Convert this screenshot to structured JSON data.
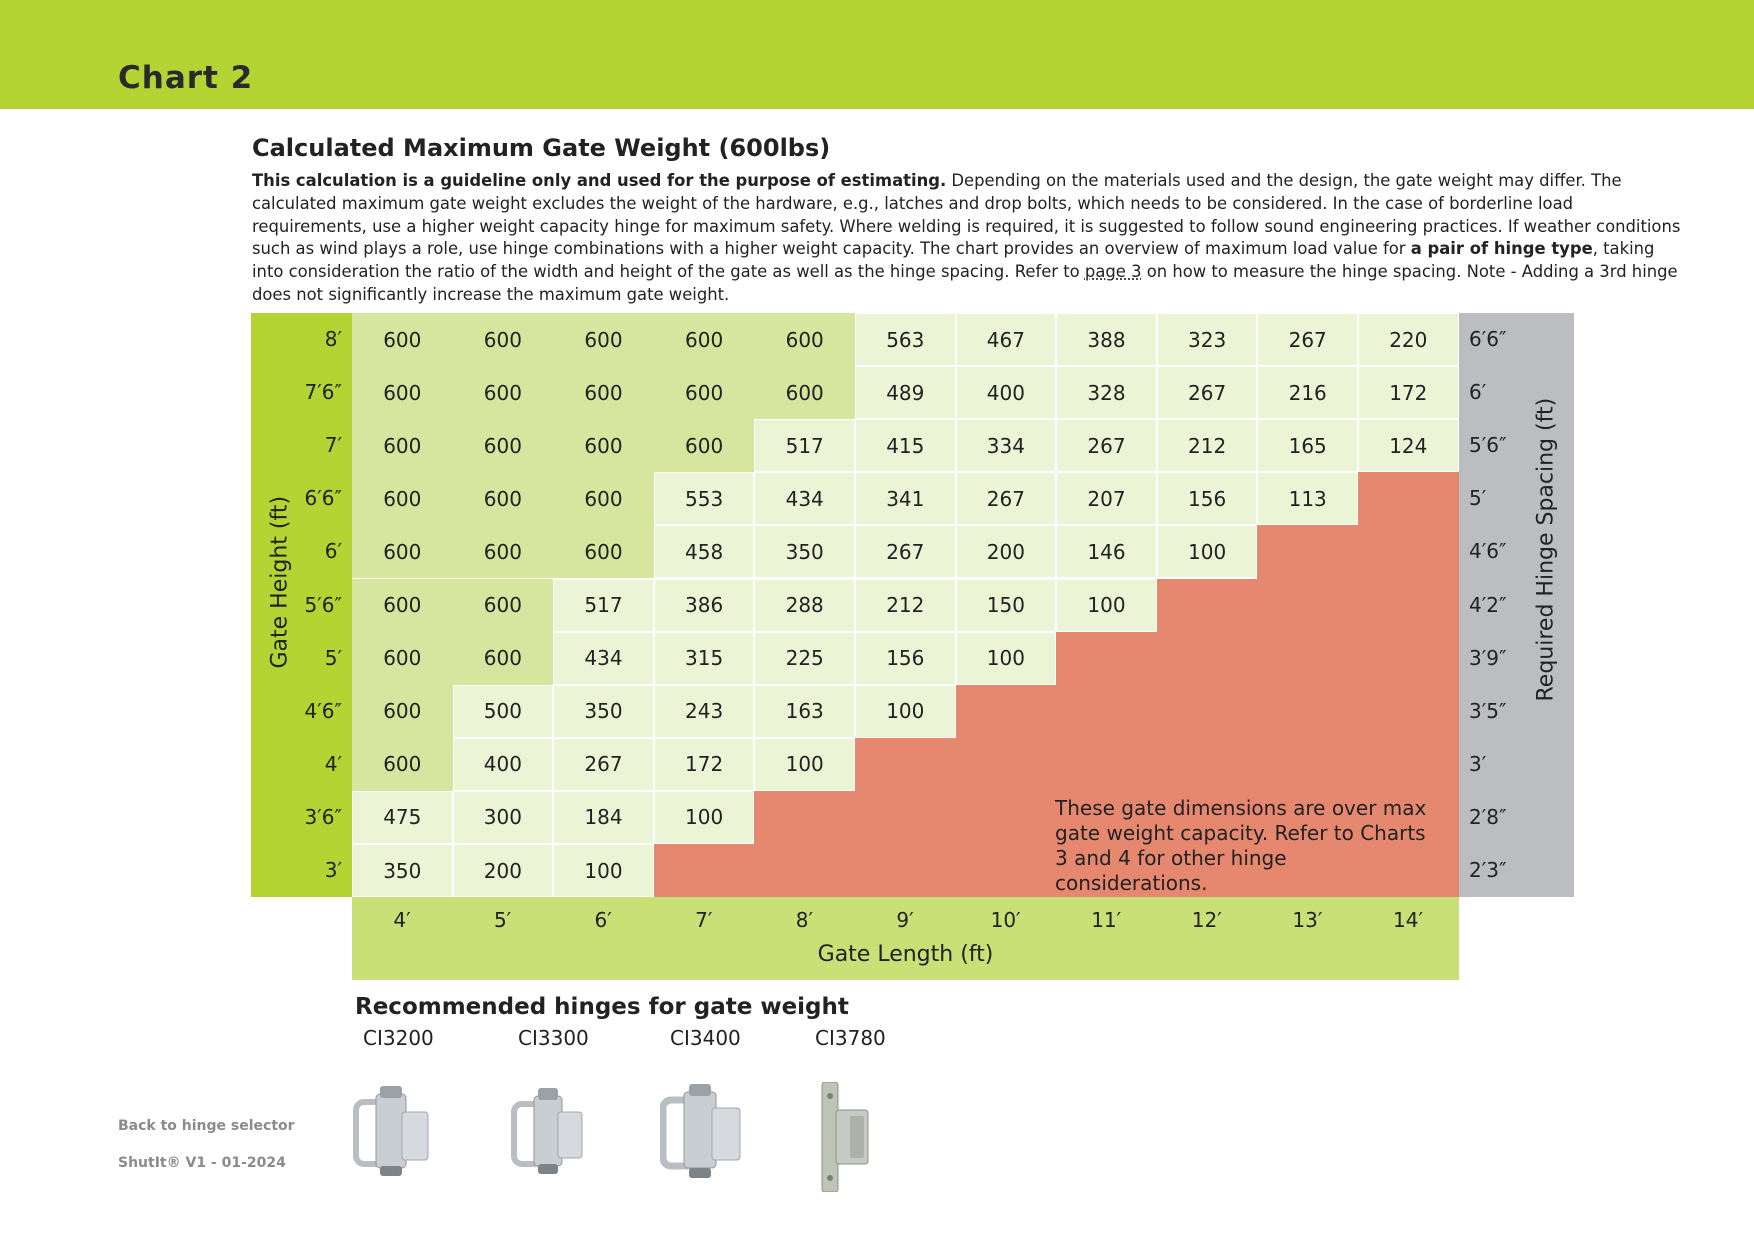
{
  "header": {
    "title": "Chart 2"
  },
  "section": {
    "title": "Calculated Maximum Gate Weight (600lbs)",
    "intro_bold": "This calculation is a guideline only and used for the purpose of estimating.",
    "intro_part1": " Depending on the materials used and the design, the gate weight may differ. The calculated maximum gate weight excludes the weight of the hardware, e.g., latches and drop bolts, which needs to be considered. In the case of borderline load requirements, use a higher weight capacity hinge for maximum safety. Where welding is required, it is suggested to follow sound engineering practices. If weather conditions such as wind plays a role, use hinge combinations with a higher weight capacity. The chart provides an overview of maximum load value for ",
    "intro_bold2": "a pair of hinge type",
    "intro_part2": ", taking into consideration the ratio of the width and height of the gate as well as the hinge spacing. Refer to ",
    "intro_link": "page 3",
    "intro_part3": " on how to measure the hinge spacing. Note - Adding a 3rd hinge does not significantly increase the maximum gate weight."
  },
  "chart_data": {
    "type": "table",
    "ylabel": "Gate Height (ft)",
    "xlabel": "Gate Length (ft)",
    "y2label": "Required Hinge Spacing (ft)",
    "rows": [
      "8′",
      "7′6″",
      "7′",
      "6′6″",
      "6′",
      "5′6″",
      "5′",
      "4′6″",
      "4′",
      "3′6″",
      "3′"
    ],
    "columns": [
      "4′",
      "5′",
      "6′",
      "7′",
      "8′",
      "9′",
      "10′",
      "11′",
      "12′",
      "13′",
      "14′"
    ],
    "hinge_spacing": [
      "6′6″",
      "6′",
      "5′6″",
      "5′",
      "4′6″",
      "4′2″",
      "3′9″",
      "3′5″",
      "3′",
      "2′8″",
      "2′3″"
    ],
    "values": [
      [
        600,
        600,
        600,
        600,
        600,
        563,
        467,
        388,
        323,
        267,
        220
      ],
      [
        600,
        600,
        600,
        600,
        600,
        489,
        400,
        328,
        267,
        216,
        172
      ],
      [
        600,
        600,
        600,
        600,
        517,
        415,
        334,
        267,
        212,
        165,
        124
      ],
      [
        600,
        600,
        600,
        553,
        434,
        341,
        267,
        207,
        156,
        113,
        null
      ],
      [
        600,
        600,
        600,
        458,
        350,
        267,
        200,
        146,
        100,
        null,
        null
      ],
      [
        600,
        600,
        517,
        386,
        288,
        212,
        150,
        100,
        null,
        null,
        null
      ],
      [
        600,
        600,
        434,
        315,
        225,
        156,
        100,
        null,
        null,
        null,
        null
      ],
      [
        600,
        500,
        350,
        243,
        163,
        100,
        null,
        null,
        null,
        null,
        null
      ],
      [
        600,
        400,
        267,
        172,
        100,
        null,
        null,
        null,
        null,
        null,
        null
      ],
      [
        475,
        300,
        184,
        100,
        null,
        null,
        null,
        null,
        null,
        null,
        null
      ],
      [
        350,
        200,
        100,
        null,
        null,
        null,
        null,
        null,
        null,
        null,
        null
      ]
    ],
    "note": "These gate dimensions are over max gate weight capacity. Refer to Charts 3 and 4 for other hinge considerations.",
    "colors": {
      "max_value": "#d7e69f",
      "value": "#ecf4d6",
      "over_capacity": "#e6876f",
      "height_axis": "#b3d433",
      "spacing_axis": "#bcbdc0",
      "length_axis": "#c8e075"
    }
  },
  "hinges": {
    "title": "Recommended hinges for gate weight",
    "items": [
      {
        "name": "CI3200",
        "icon": "hinge-ci3200-icon"
      },
      {
        "name": "CI3300",
        "icon": "hinge-ci3300-icon"
      },
      {
        "name": "CI3400",
        "icon": "hinge-ci3400-icon"
      },
      {
        "name": "CI3780",
        "icon": "hinge-ci3780-icon"
      }
    ]
  },
  "footer": {
    "back_link": "Back to hinge selector",
    "version": "ShutIt® V1 - 01-2024"
  }
}
